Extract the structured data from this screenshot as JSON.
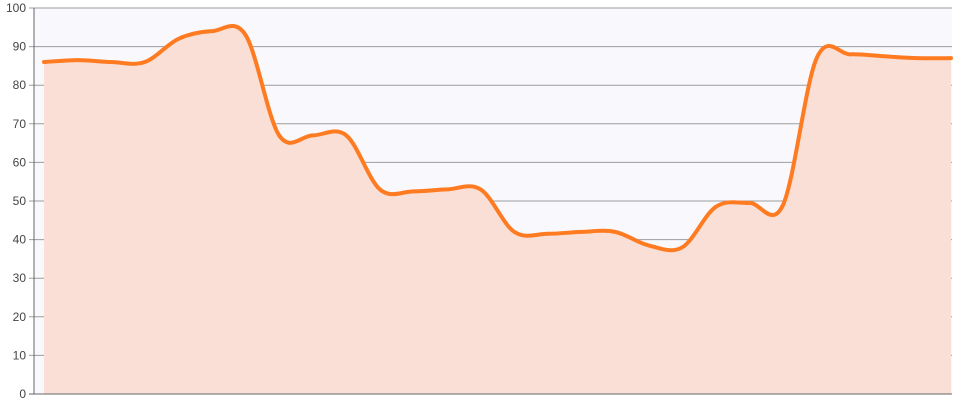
{
  "chart_data": {
    "type": "area",
    "title": "",
    "xlabel": "",
    "ylabel": "",
    "ylim": [
      0,
      100
    ],
    "y_ticks": [
      0,
      10,
      20,
      30,
      40,
      50,
      60,
      70,
      80,
      90,
      100
    ],
    "grid": true,
    "legend": "none",
    "series": [
      {
        "values": [
          86,
          86.5,
          86,
          86,
          92,
          94,
          93,
          67,
          67,
          67,
          53,
          52.5,
          53,
          53,
          42,
          41.5,
          42,
          42,
          38.5,
          38,
          48.5,
          49.5,
          49,
          87,
          88,
          87.5,
          87,
          87
        ],
        "line_color": "#ff7b22",
        "fill_color": "#fadfd6"
      }
    ],
    "plot_background": "#f9f8fd",
    "grid_color": "#9d9d9d",
    "axis_color": "#666666"
  }
}
